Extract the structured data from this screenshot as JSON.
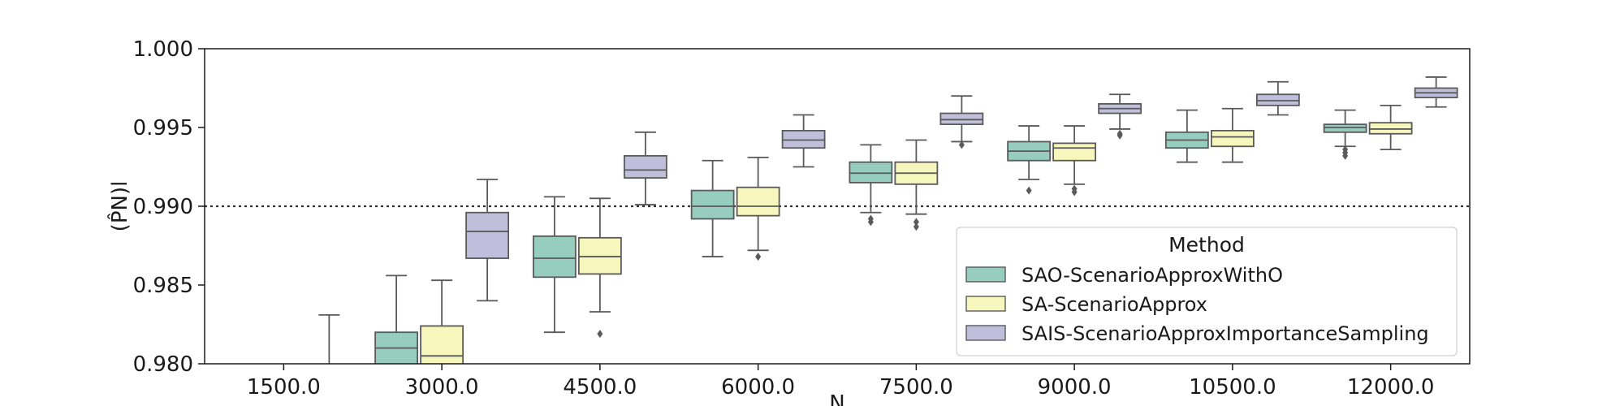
{
  "chart_data": {
    "type": "box",
    "xlabel": "N",
    "ylabel": "(P̂N)l",
    "ylim": [
      0.98,
      1.0
    ],
    "yticks": [
      "0.980",
      "0.985",
      "0.990",
      "0.995",
      "1.000"
    ],
    "yticks_values": [
      0.98,
      0.985,
      0.99,
      0.995,
      1.0
    ],
    "reference_line": 0.99,
    "categories": [
      "1500.0",
      "3000.0",
      "4500.0",
      "6000.0",
      "7500.0",
      "9000.0",
      "10500.0",
      "12000.0"
    ],
    "legend": {
      "title": "Method",
      "position": "lower-right"
    },
    "series": [
      {
        "name": "SAO-ScenarioApproxWithO",
        "color": "#96cdbf",
        "boxes": [
          null,
          {
            "whislo": 0.979,
            "q1": 0.979,
            "med": 0.981,
            "q3": 0.982,
            "whishi": 0.9856,
            "fliers": []
          },
          {
            "whislo": 0.982,
            "q1": 0.9855,
            "med": 0.9867,
            "q3": 0.9881,
            "whishi": 0.9906,
            "fliers": []
          },
          {
            "whislo": 0.9868,
            "q1": 0.9892,
            "med": 0.99,
            "q3": 0.991,
            "whishi": 0.9929,
            "fliers": []
          },
          {
            "whislo": 0.9896,
            "q1": 0.9915,
            "med": 0.9921,
            "q3": 0.9928,
            "whishi": 0.9939,
            "fliers": [
              0.9892,
              0.989
            ]
          },
          {
            "whislo": 0.9917,
            "q1": 0.9929,
            "med": 0.9935,
            "q3": 0.9941,
            "whishi": 0.9951,
            "fliers": [
              0.991
            ]
          },
          {
            "whislo": 0.9928,
            "q1": 0.9937,
            "med": 0.9942,
            "q3": 0.9947,
            "whishi": 0.9961,
            "fliers": []
          },
          {
            "whislo": 0.9938,
            "q1": 0.9947,
            "med": 0.995,
            "q3": 0.9952,
            "whishi": 0.9961,
            "fliers": [
              0.9936,
              0.9934,
              0.9932
            ]
          }
        ]
      },
      {
        "name": "SA-ScenarioApprox",
        "color": "#f7f6bc",
        "boxes": [
          null,
          {
            "whislo": 0.979,
            "q1": 0.979,
            "med": 0.9805,
            "q3": 0.9824,
            "whishi": 0.9853,
            "fliers": []
          },
          {
            "whislo": 0.9833,
            "q1": 0.9857,
            "med": 0.9868,
            "q3": 0.988,
            "whishi": 0.9905,
            "fliers": [
              0.9819
            ]
          },
          {
            "whislo": 0.9872,
            "q1": 0.9894,
            "med": 0.99,
            "q3": 0.9912,
            "whishi": 0.9931,
            "fliers": [
              0.9868
            ]
          },
          {
            "whislo": 0.9895,
            "q1": 0.9914,
            "med": 0.9921,
            "q3": 0.9928,
            "whishi": 0.9942,
            "fliers": [
              0.989,
              0.9887
            ]
          },
          {
            "whislo": 0.9914,
            "q1": 0.9929,
            "med": 0.9937,
            "q3": 0.994,
            "whishi": 0.9951,
            "fliers": [
              0.9911,
              0.9909
            ]
          },
          {
            "whislo": 0.9928,
            "q1": 0.9938,
            "med": 0.9944,
            "q3": 0.9948,
            "whishi": 0.9962,
            "fliers": []
          },
          {
            "whislo": 0.9936,
            "q1": 0.9946,
            "med": 0.9949,
            "q3": 0.9953,
            "whishi": 0.9964,
            "fliers": []
          }
        ]
      },
      {
        "name": "SAIS-ScenarioApproxImportanceSampling",
        "color": "#c1bedb",
        "boxes": [
          {
            "whislo": 0.979,
            "q1": 0.979,
            "med": 0.979,
            "q3": 0.979,
            "whishi": 0.9831,
            "fliers": []
          },
          {
            "whislo": 0.984,
            "q1": 0.9867,
            "med": 0.9884,
            "q3": 0.9896,
            "whishi": 0.9917,
            "fliers": []
          },
          {
            "whislo": 0.9901,
            "q1": 0.9918,
            "med": 0.9923,
            "q3": 0.9932,
            "whishi": 0.9947,
            "fliers": []
          },
          {
            "whislo": 0.9925,
            "q1": 0.9937,
            "med": 0.9942,
            "q3": 0.9948,
            "whishi": 0.9958,
            "fliers": []
          },
          {
            "whislo": 0.9941,
            "q1": 0.9952,
            "med": 0.9955,
            "q3": 0.9959,
            "whishi": 0.997,
            "fliers": [
              0.9939
            ]
          },
          {
            "whislo": 0.9949,
            "q1": 0.9959,
            "med": 0.9962,
            "q3": 0.9965,
            "whishi": 0.9971,
            "fliers": [
              0.9946,
              0.9945
            ]
          },
          {
            "whislo": 0.9958,
            "q1": 0.9964,
            "med": 0.9967,
            "q3": 0.9971,
            "whishi": 0.9979,
            "fliers": []
          },
          {
            "whislo": 0.9963,
            "q1": 0.9969,
            "med": 0.9972,
            "q3": 0.9975,
            "whishi": 0.9982,
            "fliers": []
          }
        ]
      }
    ]
  }
}
